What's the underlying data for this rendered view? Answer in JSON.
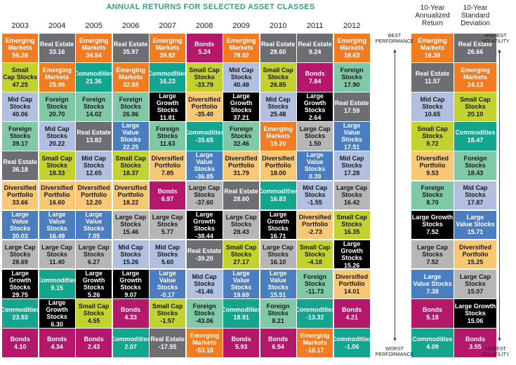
{
  "title": "ANNUAL RETURNS FOR SELECTED ASSET CLASSES",
  "years": [
    "2003",
    "2004",
    "2005",
    "2006",
    "2007",
    "2008",
    "2009",
    "2010",
    "2011",
    "2012"
  ],
  "stat_headers": [
    {
      "line1": "10-Year",
      "line2": "Annualized",
      "line3": "Return"
    },
    {
      "line1": "10-Year",
      "line2": "Standard",
      "line3": "Deviation"
    }
  ],
  "side_labels": {
    "best": "BEST\nPERFORMANCE",
    "worst": "WORST\nPERFORMANCE",
    "highest": "HIGHEST\nVOLATILITY",
    "lowest": "LOWEST\nVOLATILITY"
  },
  "colors": {
    "Emerging Markets": "#f47b20",
    "Real Estate": "#6d6e71",
    "Bonds": "#b5176b",
    "Small Cap Stocks": "#c3d22f",
    "Commodities": "#12a68e",
    "Mid Cap Stocks": "#b1c0e0",
    "Foreign Stocks": "#7fc9a6",
    "Large Growth Stocks": "#000000",
    "Large Value Stocks": "#4a7ec1",
    "Diversified Portfolio": "#f9c875",
    "Large Cap Stocks": "#b6b6b6"
  },
  "chart_data": {
    "type": "table",
    "title": "ANNUAL RETURNS FOR SELECTED ASSET CLASSES",
    "columns": [
      {
        "year": "2003",
        "rows": [
          {
            "label": "Emerging\nMarkets",
            "value": "56.28"
          },
          {
            "label": "Small\nCap Stocks",
            "value": "47.25"
          },
          {
            "label": "Mid Cap\nStocks",
            "value": "40.06"
          },
          {
            "label": "Foreign\nStocks",
            "value": "39.17"
          },
          {
            "label": "Real Estate",
            "value": "36.18"
          },
          {
            "label": "Diversified\nPortfolio",
            "value": "33.66"
          },
          {
            "label": "Large\nValue Stocks",
            "value": "30.03"
          },
          {
            "label": "Large Cap\nStocks",
            "value": "28.69"
          },
          {
            "label": "Large Growth\nStocks",
            "value": "29.75"
          },
          {
            "label": "Commodities",
            "value": "23.93"
          },
          {
            "label": "Bonds",
            "value": "4.10"
          }
        ]
      },
      {
        "year": "2004",
        "rows": [
          {
            "label": "Real Estate",
            "value": "33.16"
          },
          {
            "label": "Emerging\nMarkets",
            "value": "25.95"
          },
          {
            "label": "Foreign\nStocks",
            "value": "20.70"
          },
          {
            "label": "Mid Cap\nStocks",
            "value": "20.22"
          },
          {
            "label": "Small Cap\nStocks",
            "value": "18.33"
          },
          {
            "label": "Diversified\nPortfolio",
            "value": "16.60"
          },
          {
            "label": "Large\nValue Stocks",
            "value": "16.49"
          },
          {
            "label": "Large Cap\nStocks",
            "value": "11.40"
          },
          {
            "label": "Commodities",
            "value": "9.15"
          },
          {
            "label": "Large Growth\nStocks",
            "value": "6.30"
          },
          {
            "label": "Bonds",
            "value": "4.34"
          }
        ]
      },
      {
        "year": "2005",
        "rows": [
          {
            "label": "Emerging\nMarkets",
            "value": "34.54"
          },
          {
            "label": "Commodities",
            "value": "21.36"
          },
          {
            "label": "Foreign\nStocks",
            "value": "14.02"
          },
          {
            "label": "Real Estate",
            "value": "13.82"
          },
          {
            "label": "Mid Cap\nStocks",
            "value": "12.65"
          },
          {
            "label": "Diversified\nPortfolio",
            "value": "12.20"
          },
          {
            "label": "Large\nValue Stocks",
            "value": "7.05"
          },
          {
            "label": "Large Cap\nStocks",
            "value": "6.27"
          },
          {
            "label": "Large Growth\nStocks",
            "value": "5.26"
          },
          {
            "label": "Small Cap\nStocks",
            "value": "4.55"
          },
          {
            "label": "Bonds",
            "value": "2.43"
          }
        ]
      },
      {
        "year": "2006",
        "rows": [
          {
            "label": "Real Estate",
            "value": "35.97"
          },
          {
            "label": "Emerging\nMarkets",
            "value": "32.55"
          },
          {
            "label": "Foreign\nStocks",
            "value": "26.86"
          },
          {
            "label": "Large\nValue Stocks",
            "value": "22.25"
          },
          {
            "label": "Small Cap\nStocks",
            "value": "18.37"
          },
          {
            "label": "Diversified\nPortfolio",
            "value": "18.22"
          },
          {
            "label": "Large Cap\nStocks",
            "value": "15.46"
          },
          {
            "label": "Mid Cap\nStocks",
            "value": "15.26"
          },
          {
            "label": "Large Growth\nStocks",
            "value": "9.07"
          },
          {
            "label": "Bonds",
            "value": "4.33"
          },
          {
            "label": "Commodities",
            "value": "2.07"
          }
        ]
      },
      {
        "year": "2007",
        "rows": [
          {
            "label": "Emerging\nMarkets",
            "value": "39.82"
          },
          {
            "label": "Commodities",
            "value": "16.23"
          },
          {
            "label": "Large Growth\nStocks",
            "value": "11.81"
          },
          {
            "label": "Foreign\nStocks",
            "value": "11.63"
          },
          {
            "label": "Diversified\nPortfolio",
            "value": "7.85"
          },
          {
            "label": "Bonds",
            "value": "6.97"
          },
          {
            "label": "Large Cap\nStocks",
            "value": "5.77"
          },
          {
            "label": "Mid Cap\nStocks",
            "value": "5.60"
          },
          {
            "label": "Large\nValue Stocks",
            "value": "-0.17"
          },
          {
            "label": "Small Cap\nStocks",
            "value": "-1.57"
          },
          {
            "label": "Real Estate",
            "value": "-17.55"
          }
        ]
      },
      {
        "year": "2008",
        "rows": [
          {
            "label": "Bonds",
            "value": "5.24"
          },
          {
            "label": "Small Cap\nStocks",
            "value": "-33.79"
          },
          {
            "label": "Diversified\nPortfolio",
            "value": "-35.40"
          },
          {
            "label": "Commodities",
            "value": "-35.65"
          },
          {
            "label": "Large\nValue Stocks",
            "value": "-36.85"
          },
          {
            "label": "Large Cap\nStocks",
            "value": "-37.60"
          },
          {
            "label": "Large Growth\nStocks",
            "value": "-38.44"
          },
          {
            "label": "Real Estate",
            "value": "-39.20"
          },
          {
            "label": "Mid Cap\nStocks",
            "value": "-41.46"
          },
          {
            "label": "Foreign\nStocks",
            "value": "-43.06"
          },
          {
            "label": "Emerging\nMarkets",
            "value": "-53.18"
          }
        ]
      },
      {
        "year": "2009",
        "rows": [
          {
            "label": "Emerging\nMarkets",
            "value": "79.02"
          },
          {
            "label": "Mid Cap\nStocks",
            "value": "40.48"
          },
          {
            "label": "Large Growth\nStocks",
            "value": "37.21"
          },
          {
            "label": "Foreign\nStocks",
            "value": "32.46"
          },
          {
            "label": "Diversified\nPortfolio",
            "value": "31.79"
          },
          {
            "label": "Real Estate",
            "value": "28.60"
          },
          {
            "label": "Large Cap\nStocks",
            "value": "28.43"
          },
          {
            "label": "Small Cap\nStocks",
            "value": "27.17"
          },
          {
            "label": "Large\nValue Stocks",
            "value": "19.69"
          },
          {
            "label": "Commodities",
            "value": "18.91"
          },
          {
            "label": "Bonds",
            "value": "5.93"
          }
        ]
      },
      {
        "year": "2010",
        "rows": [
          {
            "label": "Real Estate",
            "value": "28.60"
          },
          {
            "label": "Small Cap\nStocks",
            "value": "26.85"
          },
          {
            "label": "Mid Cap\nStocks",
            "value": "25.48"
          },
          {
            "label": "Emerging\nMarkets",
            "value": "19.20"
          },
          {
            "label": "Diversified\nPortfolio",
            "value": "18.00"
          },
          {
            "label": "Commodities",
            "value": "16.83"
          },
          {
            "label": "Large Growth\nStocks",
            "value": "16.71"
          },
          {
            "label": "Large Cap\nStocks",
            "value": "16.10"
          },
          {
            "label": "Large\nValue Stocks",
            "value": "15.51"
          },
          {
            "label": "Foreign\nStocks",
            "value": "8.21"
          },
          {
            "label": "Bonds",
            "value": "6.54"
          }
        ]
      },
      {
        "year": "2011",
        "rows": [
          {
            "label": "Real Estate",
            "value": "9.24"
          },
          {
            "label": "Bonds",
            "value": "7.84"
          },
          {
            "label": "Large Growth\nStocks",
            "value": "2.64"
          },
          {
            "label": "Large Cap\nStocks",
            "value": "1.50"
          },
          {
            "label": "Large\nValue Stocks",
            "value": "0.39"
          },
          {
            "label": "Mid Cap\nStocks",
            "value": "-1.55"
          },
          {
            "label": "Diversified\nPortfolio",
            "value": "-2.73"
          },
          {
            "label": "Small Cap\nStocks",
            "value": "-4.18"
          },
          {
            "label": "Foreign\nStocks",
            "value": "-11.73"
          },
          {
            "label": "Commodities",
            "value": "-13.32"
          },
          {
            "label": "Emerging\nMarkets",
            "value": "-18.17"
          }
        ]
      },
      {
        "year": "2012",
        "rows": [
          {
            "label": "Emerging\nMarkets",
            "value": "18.63"
          },
          {
            "label": "Foreign\nStocks",
            "value": "17.90"
          },
          {
            "label": "Real Estate",
            "value": "17.59"
          },
          {
            "label": "Large\nValue Stocks",
            "value": "17.51"
          },
          {
            "label": "Mid Cap\nStocks",
            "value": "17.28"
          },
          {
            "label": "Large Cap\nStocks",
            "value": "16.42"
          },
          {
            "label": "Small Cap\nStocks",
            "value": "16.35"
          },
          {
            "label": "Large Growth\nStocks",
            "value": "15.26"
          },
          {
            "label": "Diversified\nPortfolio",
            "value": "14.01"
          },
          {
            "label": "Bonds",
            "value": "4.21"
          },
          {
            "label": "Commodities",
            "value": "-1.06"
          }
        ]
      }
    ],
    "stats": [
      {
        "header": "10-Year Annualized Return",
        "rows": [
          {
            "label": "Emerging\nMarkets",
            "value": "16.38"
          },
          {
            "label": "Real Estate",
            "value": "11.57"
          },
          {
            "label": "Mid Cap\nStocks",
            "value": "10.65"
          },
          {
            "label": "Small Cap\nStocks",
            "value": "9.72"
          },
          {
            "label": "Diversified\nPortfolio",
            "value": "9.53"
          },
          {
            "label": "Foreign\nStocks",
            "value": "8.70"
          },
          {
            "label": "Large Growth\nStocks",
            "value": "7.52"
          },
          {
            "label": "Large Cap\nStocks",
            "value": "7.52"
          },
          {
            "label": "Large\nValue Stocks",
            "value": "7.38"
          },
          {
            "label": "Bonds",
            "value": "5.18"
          },
          {
            "label": "Commodities",
            "value": "4.09"
          }
        ]
      },
      {
        "header": "10-Year Standard Deviation",
        "rows": [
          {
            "label": "Real Estate",
            "value": "26.66"
          },
          {
            "label": "Emerging\nMarkets",
            "value": "24.13"
          },
          {
            "label": "Small Cap\nStocks",
            "value": "20.10"
          },
          {
            "label": "Commodities",
            "value": "18.47"
          },
          {
            "label": "Foreign\nStocks",
            "value": "18.43"
          },
          {
            "label": "Mid Cap\nStocks",
            "value": "17.87"
          },
          {
            "label": "Large\nValue Stocks",
            "value": "15.71"
          },
          {
            "label": "Diversified\nPortfolio",
            "value": "15.25"
          },
          {
            "label": "Large Cap\nStocks",
            "value": "15.07"
          },
          {
            "label": "Large Growth\nStocks",
            "value": "15.06"
          },
          {
            "label": "Bonds",
            "value": "3.55"
          }
        ]
      }
    ]
  }
}
